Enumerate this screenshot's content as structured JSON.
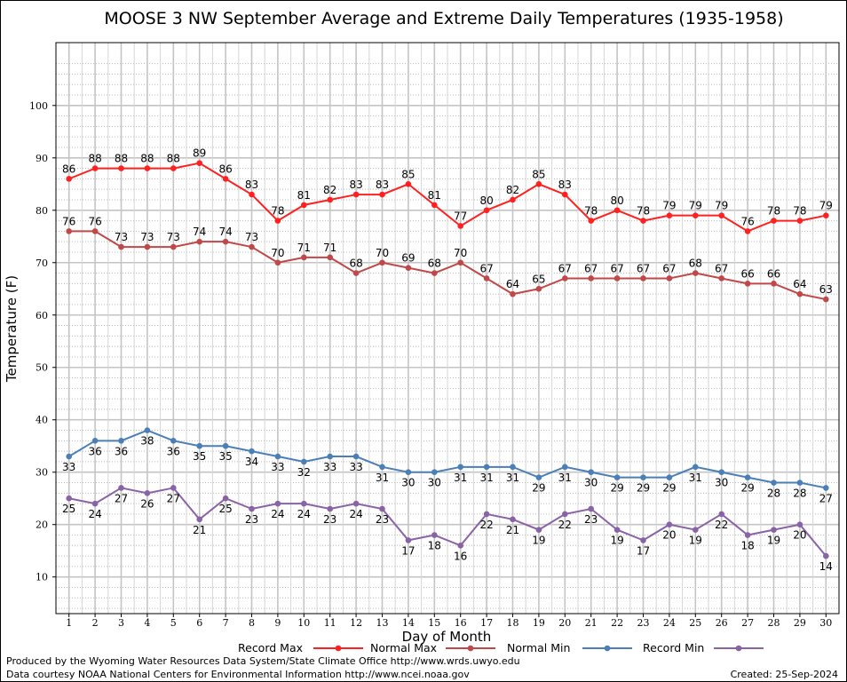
{
  "chart_data": {
    "type": "line",
    "title": "MOOSE 3 NW September Average and Extreme Daily Temperatures (1935-1958)",
    "xlabel": "Day of Month",
    "ylabel": "Temperature (F)",
    "x": [
      1,
      2,
      3,
      4,
      5,
      6,
      7,
      8,
      9,
      10,
      11,
      12,
      13,
      14,
      15,
      16,
      17,
      18,
      19,
      20,
      21,
      22,
      23,
      24,
      25,
      26,
      27,
      28,
      29,
      30
    ],
    "xlim": [
      0.5,
      30.5
    ],
    "ylim": [
      3,
      112
    ],
    "yticks": [
      10,
      20,
      30,
      40,
      50,
      60,
      70,
      80,
      90,
      100
    ],
    "grid": true,
    "legend_position": "bottom",
    "series": [
      {
        "name": "Record Max",
        "color": "#ff2020",
        "label_position": "above",
        "values": [
          86,
          88,
          88,
          88,
          88,
          89,
          86,
          83,
          78,
          81,
          82,
          83,
          83,
          85,
          81,
          77,
          80,
          82,
          85,
          83,
          78,
          80,
          78,
          79,
          79,
          79,
          76,
          78,
          78,
          79
        ]
      },
      {
        "name": "Normal Max",
        "color": "#c04848",
        "label_position": "above",
        "values": [
          76,
          76,
          73,
          73,
          73,
          74,
          74,
          73,
          70,
          71,
          71,
          68,
          70,
          69,
          68,
          70,
          67,
          64,
          65,
          67,
          67,
          67,
          67,
          67,
          68,
          67,
          66,
          66,
          64,
          63
        ]
      },
      {
        "name": "Normal Min",
        "color": "#4a7fb8",
        "label_position": "below",
        "values": [
          33,
          36,
          36,
          38,
          36,
          35,
          35,
          34,
          33,
          32,
          33,
          33,
          31,
          30,
          30,
          31,
          31,
          31,
          29,
          31,
          30,
          29,
          29,
          29,
          31,
          30,
          29,
          28,
          28,
          27
        ]
      },
      {
        "name": "Record Min",
        "color": "#8a62a6",
        "label_position": "below",
        "values": [
          25,
          24,
          27,
          26,
          27,
          21,
          25,
          23,
          24,
          24,
          23,
          24,
          23,
          17,
          18,
          16,
          22,
          21,
          19,
          22,
          23,
          19,
          17,
          20,
          19,
          22,
          18,
          19,
          20,
          14
        ]
      }
    ]
  },
  "footer": {
    "credit_line1": "Produced by the Wyoming Water Resources Data System/State Climate Office http://www.wrds.uwyo.edu",
    "credit_line2": "Data courtesy NOAA National Centers for Environmental Information http://www.ncei.noaa.gov",
    "created": "Created:  25-Sep-2024"
  }
}
